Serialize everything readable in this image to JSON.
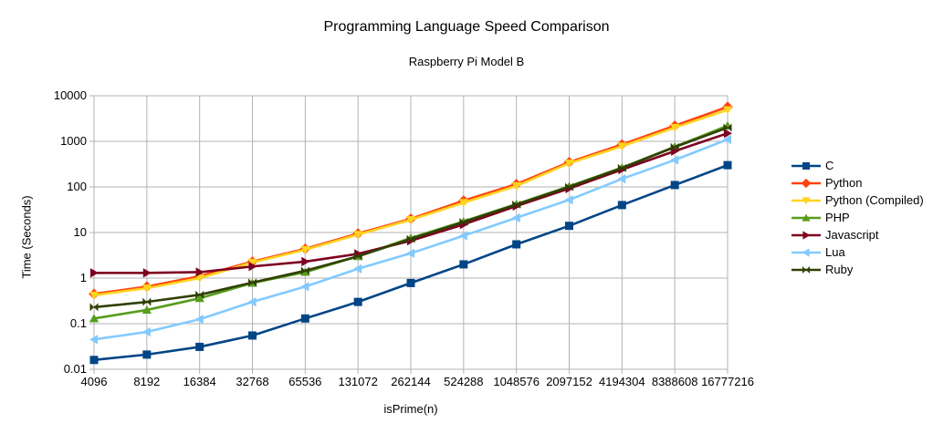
{
  "chart_data": {
    "type": "line",
    "title": "Programming Language Speed Comparison",
    "subtitle": "Raspberry Pi Model B",
    "xlabel": "isPrime(n)",
    "ylabel": "Time (Seconds)",
    "y_scale": "log",
    "ylim": [
      0.01,
      10000
    ],
    "y_ticks": [
      0.01,
      0.1,
      1,
      10,
      100,
      1000,
      10000
    ],
    "y_tick_labels": [
      "0.01",
      "0.1",
      "1",
      "10",
      "100",
      "1000",
      "10000"
    ],
    "grid": true,
    "grid_color": "#b3b3b3",
    "text_color": "#000000",
    "background_color": "#ffffff",
    "legend_position": "right",
    "categories": [
      "4096",
      "8192",
      "16384",
      "32768",
      "65536",
      "131072",
      "262144",
      "524288",
      "1048576",
      "2097152",
      "4194304",
      "8388608",
      "16777216"
    ],
    "series": [
      {
        "name": "C",
        "color": "#004586",
        "marker": "square",
        "values": [
          0.016,
          0.021,
          0.031,
          0.055,
          0.13,
          0.3,
          0.78,
          2.0,
          5.5,
          14,
          40,
          110,
          300
        ]
      },
      {
        "name": "Python",
        "color": "#FF420E",
        "marker": "diamond",
        "values": [
          0.45,
          0.65,
          1.1,
          2.3,
          4.4,
          9.5,
          20,
          50,
          115,
          350,
          850,
          2200,
          5700
        ]
      },
      {
        "name": "Python (Compiled)",
        "color": "#FFD320",
        "marker": "triangle-down",
        "values": [
          0.42,
          0.6,
          1.0,
          2.2,
          4.2,
          9.0,
          19,
          45,
          105,
          330,
          780,
          2000,
          4900
        ]
      },
      {
        "name": "PHP",
        "color": "#579D1C",
        "marker": "triangle-up",
        "values": [
          0.13,
          0.2,
          0.36,
          0.78,
          1.35,
          3.0,
          7.6,
          17.5,
          42,
          103,
          265,
          760,
          2200
        ]
      },
      {
        "name": "Javascript",
        "color": "#7E0021",
        "marker": "triangle-right",
        "values": [
          1.3,
          1.3,
          1.35,
          1.8,
          2.3,
          3.4,
          6.6,
          15,
          38,
          92,
          240,
          610,
          1500
        ]
      },
      {
        "name": "Lua",
        "color": "#83CAFF",
        "marker": "triangle-left",
        "values": [
          0.045,
          0.066,
          0.125,
          0.3,
          0.65,
          1.6,
          3.5,
          8.5,
          21,
          52,
          150,
          390,
          1100
        ]
      },
      {
        "name": "Ruby",
        "color": "#314004",
        "marker": "bowtie",
        "values": [
          0.23,
          0.3,
          0.43,
          0.8,
          1.45,
          3.0,
          7.2,
          17,
          41,
          100,
          260,
          750,
          2000
        ]
      }
    ]
  }
}
